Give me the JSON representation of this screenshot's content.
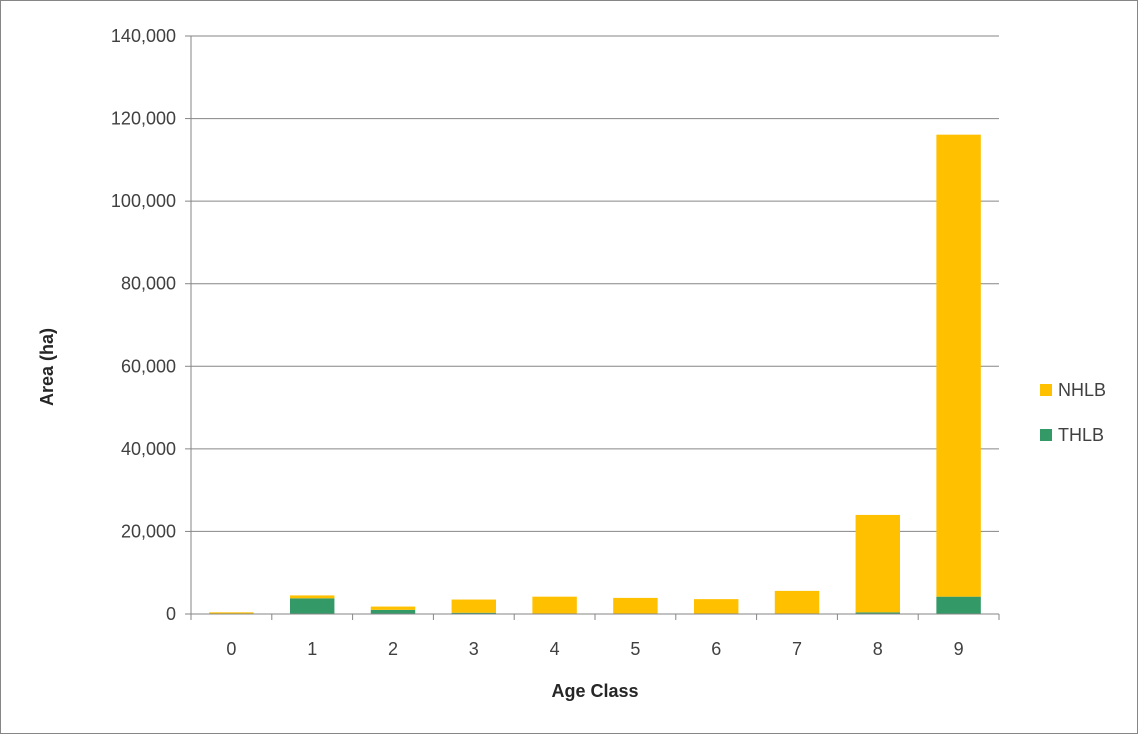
{
  "chart_data": {
    "type": "bar",
    "stacked": true,
    "title": "",
    "xlabel": "Age Class",
    "ylabel": "Area (ha)",
    "categories": [
      "0",
      "1",
      "2",
      "3",
      "4",
      "5",
      "6",
      "7",
      "8",
      "9"
    ],
    "series": [
      {
        "name": "THLB",
        "color": "#339966",
        "values": [
          0,
          3800,
          1000,
          300,
          0,
          0,
          0,
          0,
          400,
          4200
        ]
      },
      {
        "name": "NHLB",
        "color": "#FFC000",
        "values": [
          400,
          700,
          800,
          3200,
          4200,
          3900,
          3600,
          5600,
          23600,
          111900
        ]
      }
    ],
    "ylim": [
      0,
      140000
    ],
    "yticks": [
      0,
      20000,
      40000,
      60000,
      80000,
      100000,
      120000,
      140000
    ],
    "ytick_labels": [
      "0",
      "20,000",
      "40,000",
      "60,000",
      "80,000",
      "100,000",
      "120,000",
      "140,000"
    ],
    "grid": true,
    "legend": {
      "placement": "right",
      "order": [
        "NHLB",
        "THLB"
      ]
    }
  }
}
